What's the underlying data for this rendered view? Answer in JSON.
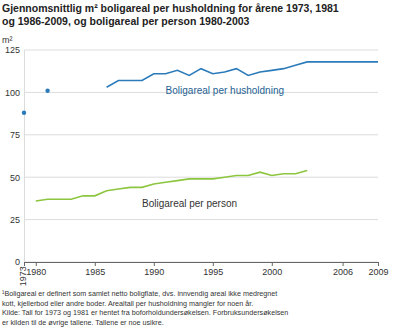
{
  "chart_data": {
    "type": "line",
    "title": [
      "Gjennomsnittlig m² boligareal per husholdning for årene 1973, 1981",
      "og 1986-2009, og boligareal per person 1980-2003"
    ],
    "y_label": "m²",
    "notes": [
      "¹Boligareal er definert som samlet netto boligflate, dvs. innvendig areal ikke medregnet",
      "kott, kjellerbod eller andre boder. Arealtall per husholdning mangler for noen år.",
      "Kilde: Tall for 1973 og 1981 er hentet fra boforholdundersøkelsen. Forbruksundersøkelsen",
      "er kilden til de øvrige tallene. Tallene er noe usikre."
    ],
    "categories": [
      "1973",
      "1980",
      null,
      null,
      null,
      null,
      "1985",
      null,
      null,
      null,
      null,
      "1990",
      null,
      null,
      null,
      null,
      "1995",
      null,
      null,
      null,
      null,
      "2000",
      null,
      null,
      null,
      null,
      null,
      "2006",
      null,
      null,
      "2009"
    ],
    "series": [
      {
        "name": "Boligareal per husholdning",
        "color": "#2b7bba",
        "values": [
          88,
          null,
          101,
          null,
          null,
          null,
          null,
          103,
          107,
          107,
          107,
          111,
          111,
          113,
          110,
          114,
          111,
          112,
          114,
          110,
          112,
          113,
          114,
          116,
          118,
          118,
          118,
          118,
          118,
          118,
          118
        ]
      },
      {
        "name": "Boligareal per person",
        "color": "#8cc63e",
        "values": [
          null,
          36,
          37,
          37,
          37,
          39,
          39,
          42,
          43,
          44,
          44,
          46,
          47,
          48,
          49,
          49,
          49,
          50,
          51,
          51,
          53,
          51,
          52,
          52,
          54,
          null,
          null,
          null,
          null,
          null,
          null
        ]
      }
    ],
    "ylim": [
      0,
      125
    ],
    "yticks": [
      0,
      25,
      50,
      75,
      100,
      125
    ],
    "grid": true
  }
}
